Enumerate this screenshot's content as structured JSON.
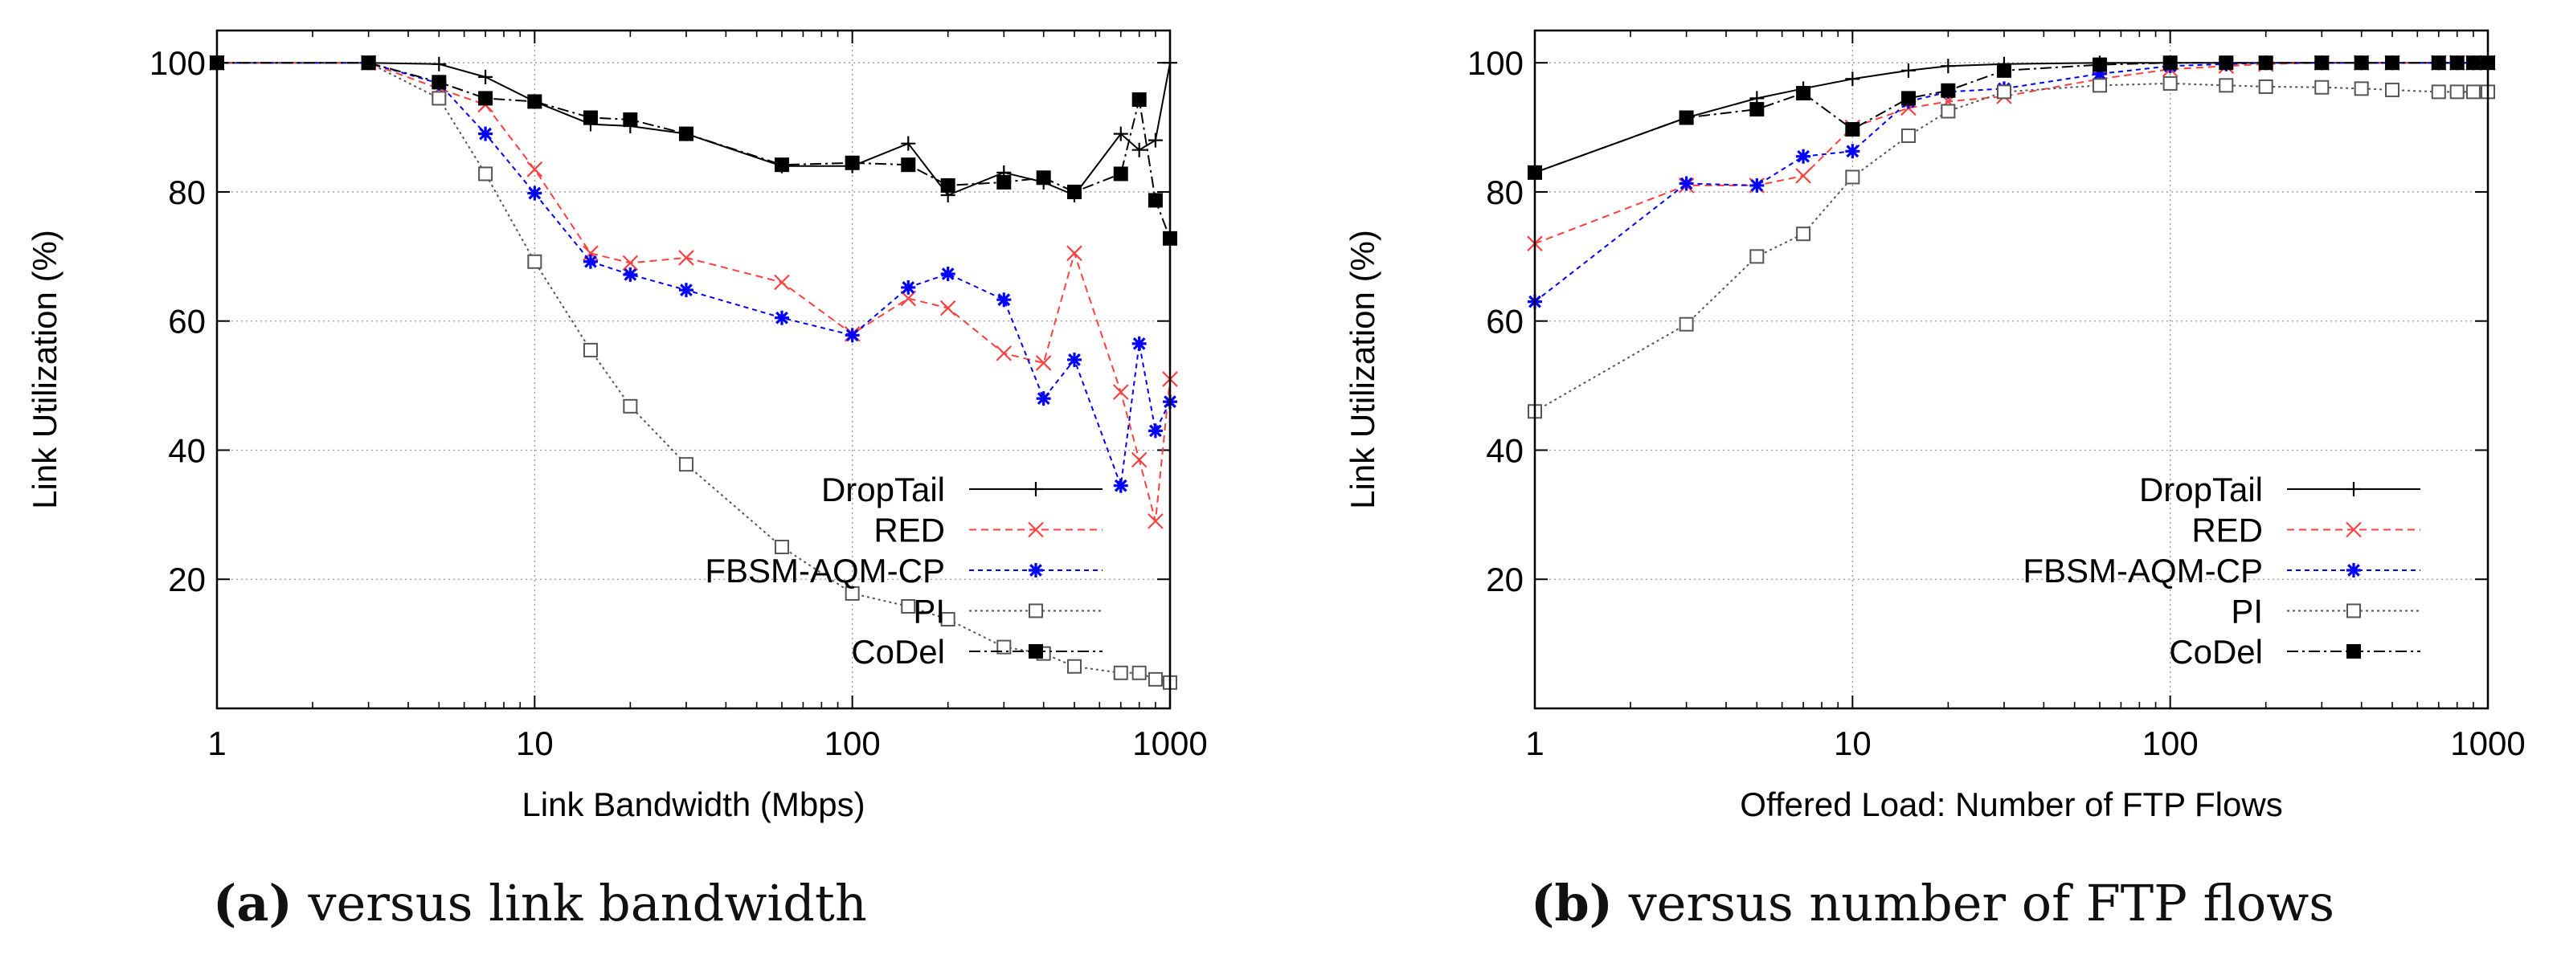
{
  "chart_data": [
    {
      "type": "line",
      "id": "a",
      "xscale": "log",
      "xlim": [
        1,
        1000
      ],
      "ylim": [
        0,
        105
      ],
      "xlabel": "Link Bandwidth (Mbps)",
      "ylabel": "Link Utilization (%)",
      "xticks": [
        1,
        10,
        100,
        1000
      ],
      "xtick_labels": [
        "1",
        "10",
        "100",
        "1000"
      ],
      "yticks": [
        20,
        40,
        60,
        80,
        100
      ],
      "ytick_labels": [
        "20",
        "40",
        "60",
        "80",
        "100"
      ],
      "grid": true,
      "legend_position": "bottom-right",
      "caption_letter": "(a)",
      "caption_text": " versus link bandwidth",
      "series": [
        {
          "name": "DropTail",
          "color": "#000000",
          "marker": "plus",
          "dash": "",
          "x": [
            1,
            3,
            5,
            7,
            10,
            15,
            20,
            30,
            60,
            100,
            150,
            200,
            300,
            400,
            500,
            700,
            800,
            900,
            1000
          ],
          "y": [
            100,
            100,
            99.8,
            97.8,
            94,
            90.5,
            90.2,
            89,
            84,
            84,
            87.5,
            79.5,
            83,
            81.5,
            79.5,
            89,
            86.5,
            88,
            100
          ]
        },
        {
          "name": "RED",
          "color": "#ff4040",
          "marker": "x",
          "dash": "9,6",
          "x": [
            1,
            3,
            5,
            7,
            10,
            15,
            20,
            30,
            60,
            100,
            150,
            200,
            300,
            400,
            500,
            700,
            800,
            900,
            1000
          ],
          "y": [
            100,
            100,
            96,
            93.5,
            83.5,
            70.5,
            69,
            69.8,
            66,
            58,
            63.5,
            62,
            55,
            53.5,
            70.5,
            49,
            38.5,
            29,
            51
          ]
        },
        {
          "name": "FBSM-AQM-CP",
          "color": "#0000ff",
          "marker": "star",
          "dash": "6,5",
          "x": [
            1,
            3,
            5,
            7,
            10,
            15,
            20,
            30,
            60,
            100,
            150,
            200,
            300,
            400,
            500,
            700,
            800,
            900,
            1000
          ],
          "y": [
            100,
            100,
            96.8,
            89,
            79.8,
            69.2,
            67.2,
            64.8,
            60.5,
            57.8,
            65.2,
            67.3,
            63.3,
            48,
            54,
            34.5,
            56.5,
            43,
            47.5
          ]
        },
        {
          "name": "PI",
          "color": "#555555",
          "marker": "square-open",
          "dash": "3,4",
          "x": [
            1,
            3,
            5,
            7,
            10,
            15,
            20,
            30,
            60,
            100,
            150,
            200,
            300,
            400,
            500,
            700,
            800,
            900,
            1000
          ],
          "y": [
            100,
            100,
            94.5,
            82.8,
            69.2,
            55.5,
            46.8,
            37.8,
            25,
            17.8,
            15.8,
            13.8,
            9.5,
            8.5,
            6.5,
            5.5,
            5.5,
            4.5,
            4
          ]
        },
        {
          "name": "CoDel",
          "color": "#000000",
          "marker": "square-filled",
          "dash": "14,5,3,5",
          "x": [
            1,
            3,
            5,
            7,
            10,
            15,
            20,
            30,
            60,
            100,
            150,
            200,
            300,
            400,
            500,
            700,
            800,
            900,
            1000
          ],
          "y": [
            100,
            100,
            97,
            94.5,
            94,
            91.5,
            91.2,
            89,
            84.2,
            84.5,
            84.2,
            81,
            81.5,
            82.2,
            80,
            82.8,
            94.3,
            78.7,
            72.8
          ]
        }
      ]
    },
    {
      "type": "line",
      "id": "b",
      "xscale": "log",
      "xlim": [
        1,
        1000
      ],
      "ylim": [
        0,
        105
      ],
      "xlabel": "Offered Load: Number of FTP Flows",
      "ylabel": "Link Utilization (%)",
      "xticks": [
        1,
        10,
        100,
        1000
      ],
      "xtick_labels": [
        "1",
        "10",
        "100",
        "1000"
      ],
      "yticks": [
        20,
        40,
        60,
        80,
        100
      ],
      "ytick_labels": [
        "20",
        "40",
        "60",
        "80",
        "100"
      ],
      "grid": true,
      "legend_position": "bottom-right",
      "caption_letter": "(b)",
      "caption_text": " versus number of FTP flows",
      "series": [
        {
          "name": "DropTail",
          "color": "#000000",
          "marker": "plus",
          "dash": "",
          "x": [
            1,
            3,
            5,
            7,
            10,
            15,
            20,
            30,
            60,
            100,
            150,
            200,
            300,
            400,
            500,
            700,
            800,
            900,
            1000
          ],
          "y": [
            83,
            91.5,
            94.5,
            96,
            97.5,
            98.8,
            99.5,
            99.8,
            100,
            100,
            100,
            100,
            100,
            100,
            100,
            100,
            100,
            100,
            100
          ]
        },
        {
          "name": "RED",
          "color": "#ff4040",
          "marker": "x",
          "dash": "9,6",
          "x": [
            1,
            3,
            5,
            7,
            10,
            15,
            20,
            30,
            60,
            100,
            150,
            200,
            300,
            400,
            500,
            700,
            800,
            900,
            1000
          ],
          "y": [
            72,
            81,
            81,
            82.5,
            90,
            93,
            94,
            94.8,
            97.5,
            99,
            99.5,
            99.8,
            100,
            100,
            100,
            100,
            100,
            100,
            100
          ]
        },
        {
          "name": "FBSM-AQM-CP",
          "color": "#0000ff",
          "marker": "star",
          "dash": "6,5",
          "x": [
            1,
            3,
            5,
            7,
            10,
            15,
            20,
            30,
            60,
            100,
            150,
            200,
            300,
            400,
            500,
            700,
            800,
            900,
            1000
          ],
          "y": [
            63,
            81.3,
            81,
            85.5,
            86.3,
            94,
            95.5,
            96,
            98.3,
            99.5,
            99.8,
            100,
            100,
            100,
            100,
            100,
            100,
            100,
            100
          ]
        },
        {
          "name": "PI",
          "color": "#555555",
          "marker": "square-open",
          "dash": "3,4",
          "x": [
            1,
            3,
            5,
            7,
            10,
            15,
            20,
            30,
            60,
            100,
            150,
            200,
            300,
            400,
            500,
            700,
            800,
            900,
            1000
          ],
          "y": [
            46,
            59.5,
            70,
            73.5,
            82.3,
            88.7,
            92.5,
            95.5,
            96.5,
            96.8,
            96.5,
            96.3,
            96.2,
            96,
            95.8,
            95.5,
            95.5,
            95.5,
            95.5
          ]
        },
        {
          "name": "CoDel",
          "color": "#000000",
          "marker": "square-filled",
          "dash": "14,5,3,5",
          "x": [
            1,
            3,
            5,
            7,
            10,
            15,
            20,
            30,
            60,
            100,
            150,
            200,
            300,
            400,
            500,
            700,
            800,
            900,
            1000
          ],
          "y": [
            83,
            91.5,
            92.8,
            95.3,
            89.7,
            94.5,
            95.7,
            98.8,
            99.7,
            100,
            100,
            100,
            100,
            100,
            100,
            100,
            100,
            100,
            100
          ]
        }
      ]
    }
  ]
}
